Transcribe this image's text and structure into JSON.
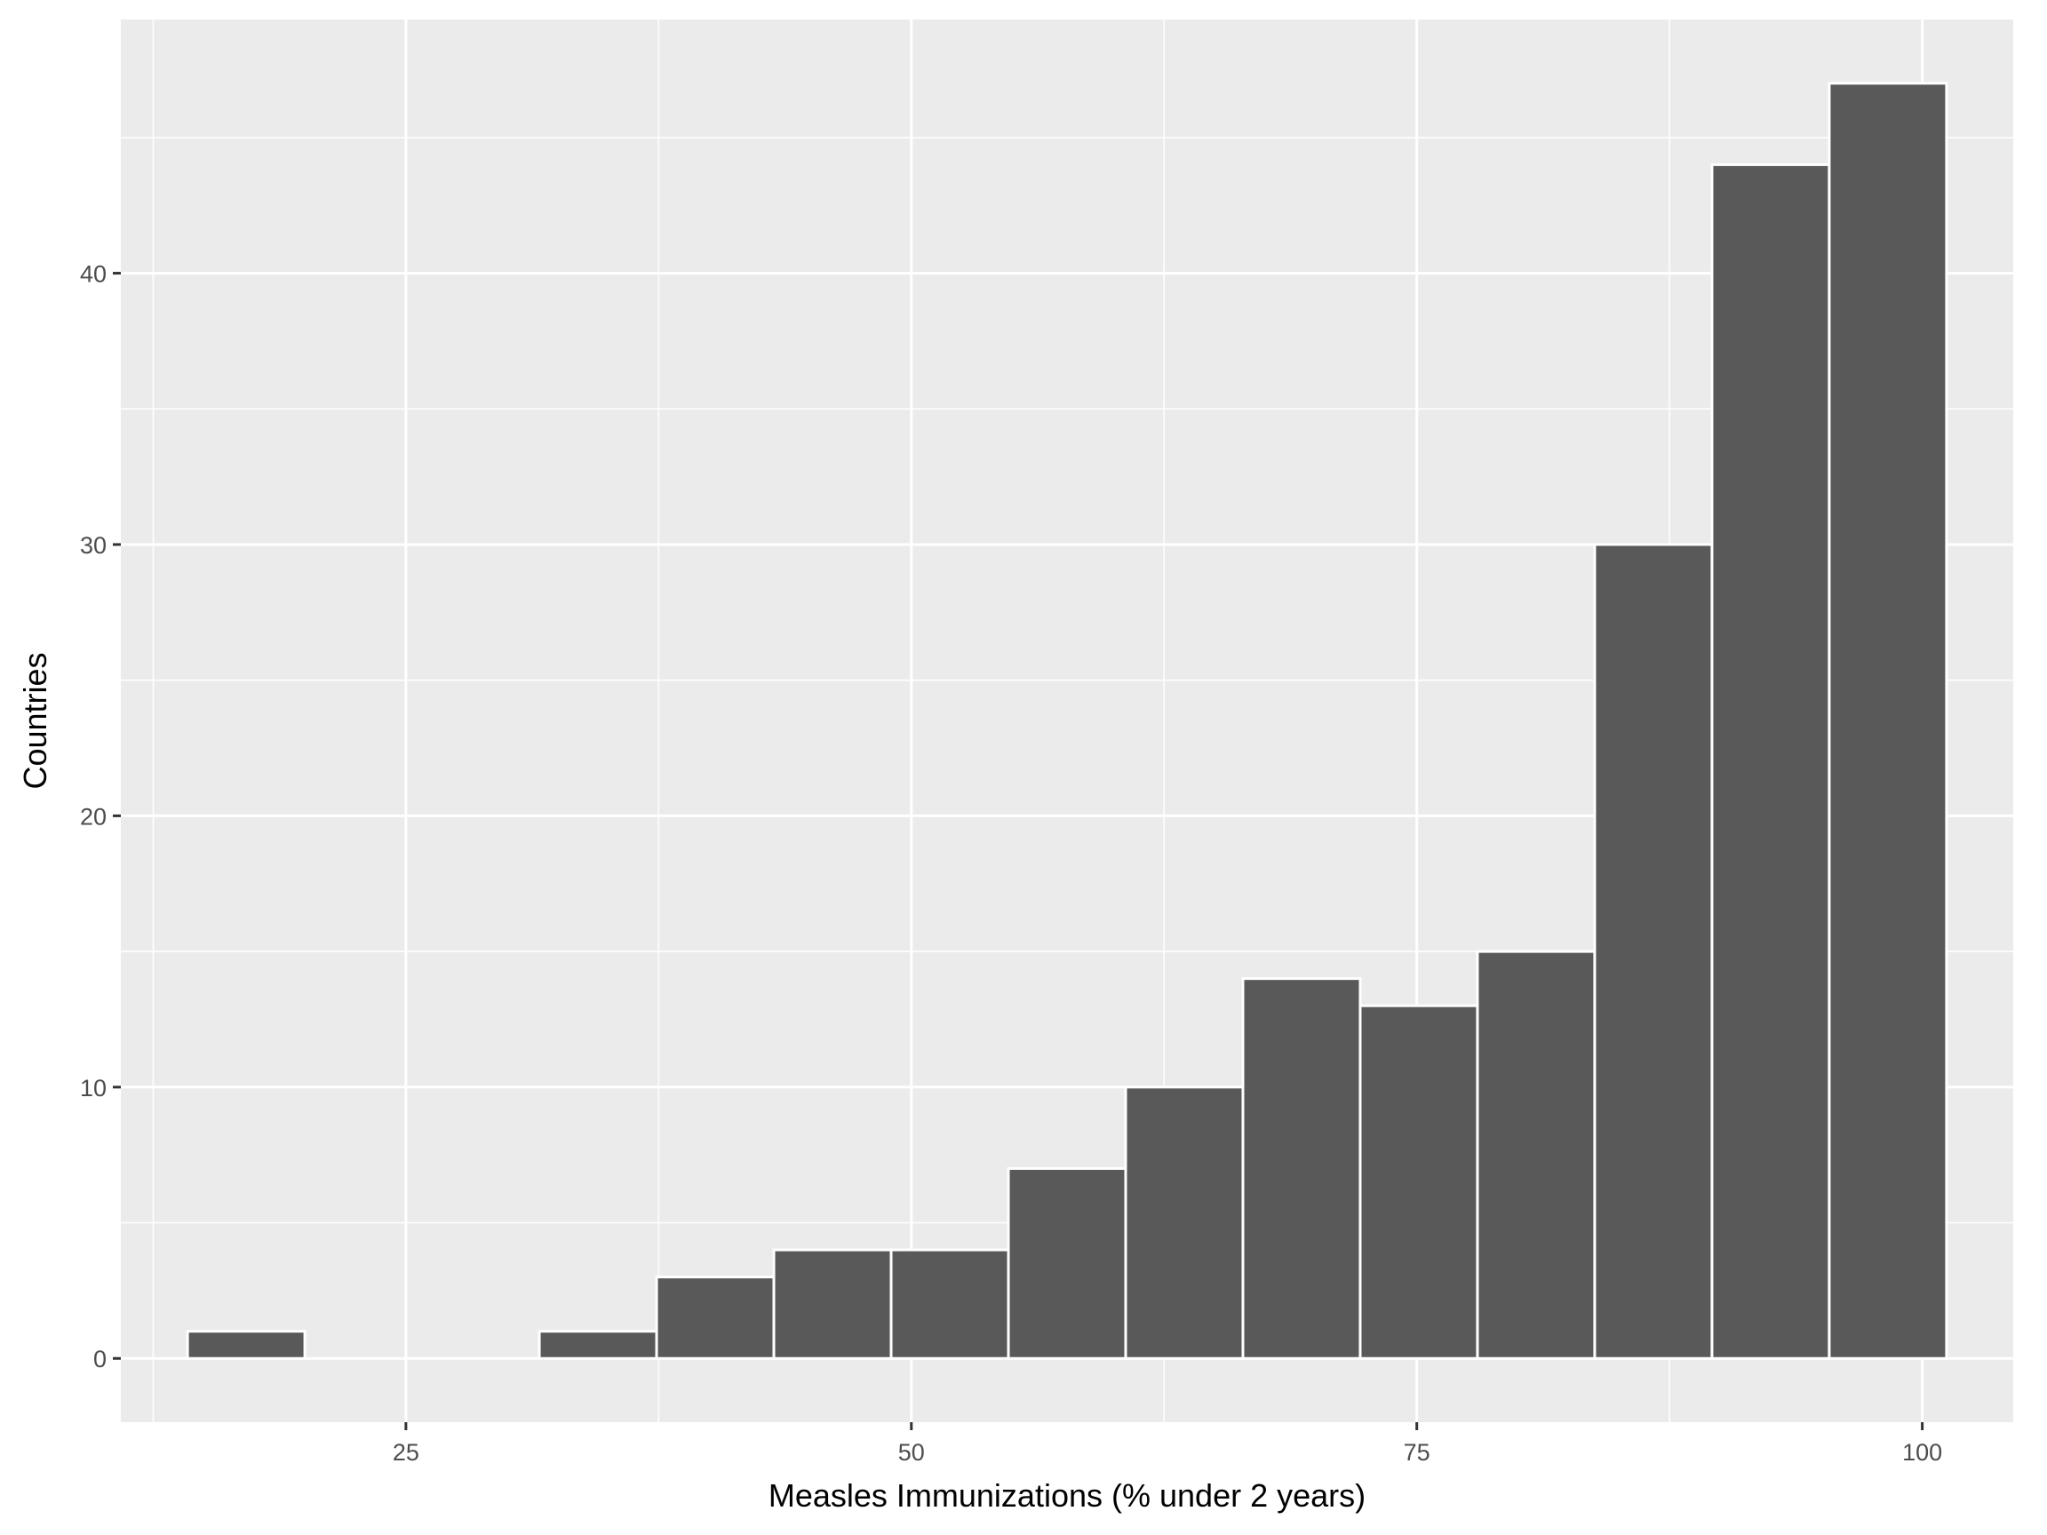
{
  "chart_data": {
    "type": "bar",
    "subtype": "histogram",
    "title": "",
    "xlabel": "Measles Immunizations (% under 2 years)",
    "ylabel": "Countries",
    "xlim": [
      10.9,
      104.5
    ],
    "ylim": [
      -2.35,
      49.35
    ],
    "x_ticks": [
      25,
      50,
      75,
      100
    ],
    "y_ticks": [
      0,
      10,
      20,
      30,
      40
    ],
    "bin_width": 5.8,
    "bins": [
      {
        "x0": 14.2,
        "x1": 20.0,
        "count": 1
      },
      {
        "x0": 20.0,
        "x1": 25.8,
        "count": 0
      },
      {
        "x0": 25.8,
        "x1": 31.6,
        "count": 0
      },
      {
        "x0": 31.6,
        "x1": 37.4,
        "count": 1
      },
      {
        "x0": 37.4,
        "x1": 43.2,
        "count": 3
      },
      {
        "x0": 43.2,
        "x1": 49.0,
        "count": 4
      },
      {
        "x0": 49.0,
        "x1": 54.8,
        "count": 4
      },
      {
        "x0": 54.8,
        "x1": 60.6,
        "count": 7
      },
      {
        "x0": 60.6,
        "x1": 66.4,
        "count": 10
      },
      {
        "x0": 66.4,
        "x1": 72.2,
        "count": 14
      },
      {
        "x0": 72.2,
        "x1": 78.0,
        "count": 13
      },
      {
        "x0": 78.0,
        "x1": 83.8,
        "count": 15
      },
      {
        "x0": 83.8,
        "x1": 89.6,
        "count": 30
      },
      {
        "x0": 89.6,
        "x1": 95.4,
        "count": 44
      },
      {
        "x0": 95.4,
        "x1": 101.2,
        "count": 47
      }
    ],
    "grid": true,
    "legend": "none",
    "colors": {
      "panel_background": "#ebebeb",
      "grid": "#ffffff",
      "bar_fill": "#595959",
      "bar_outline": "#ffffff",
      "tick_text": "#4d4d4d",
      "tick_mark": "#333333"
    }
  }
}
